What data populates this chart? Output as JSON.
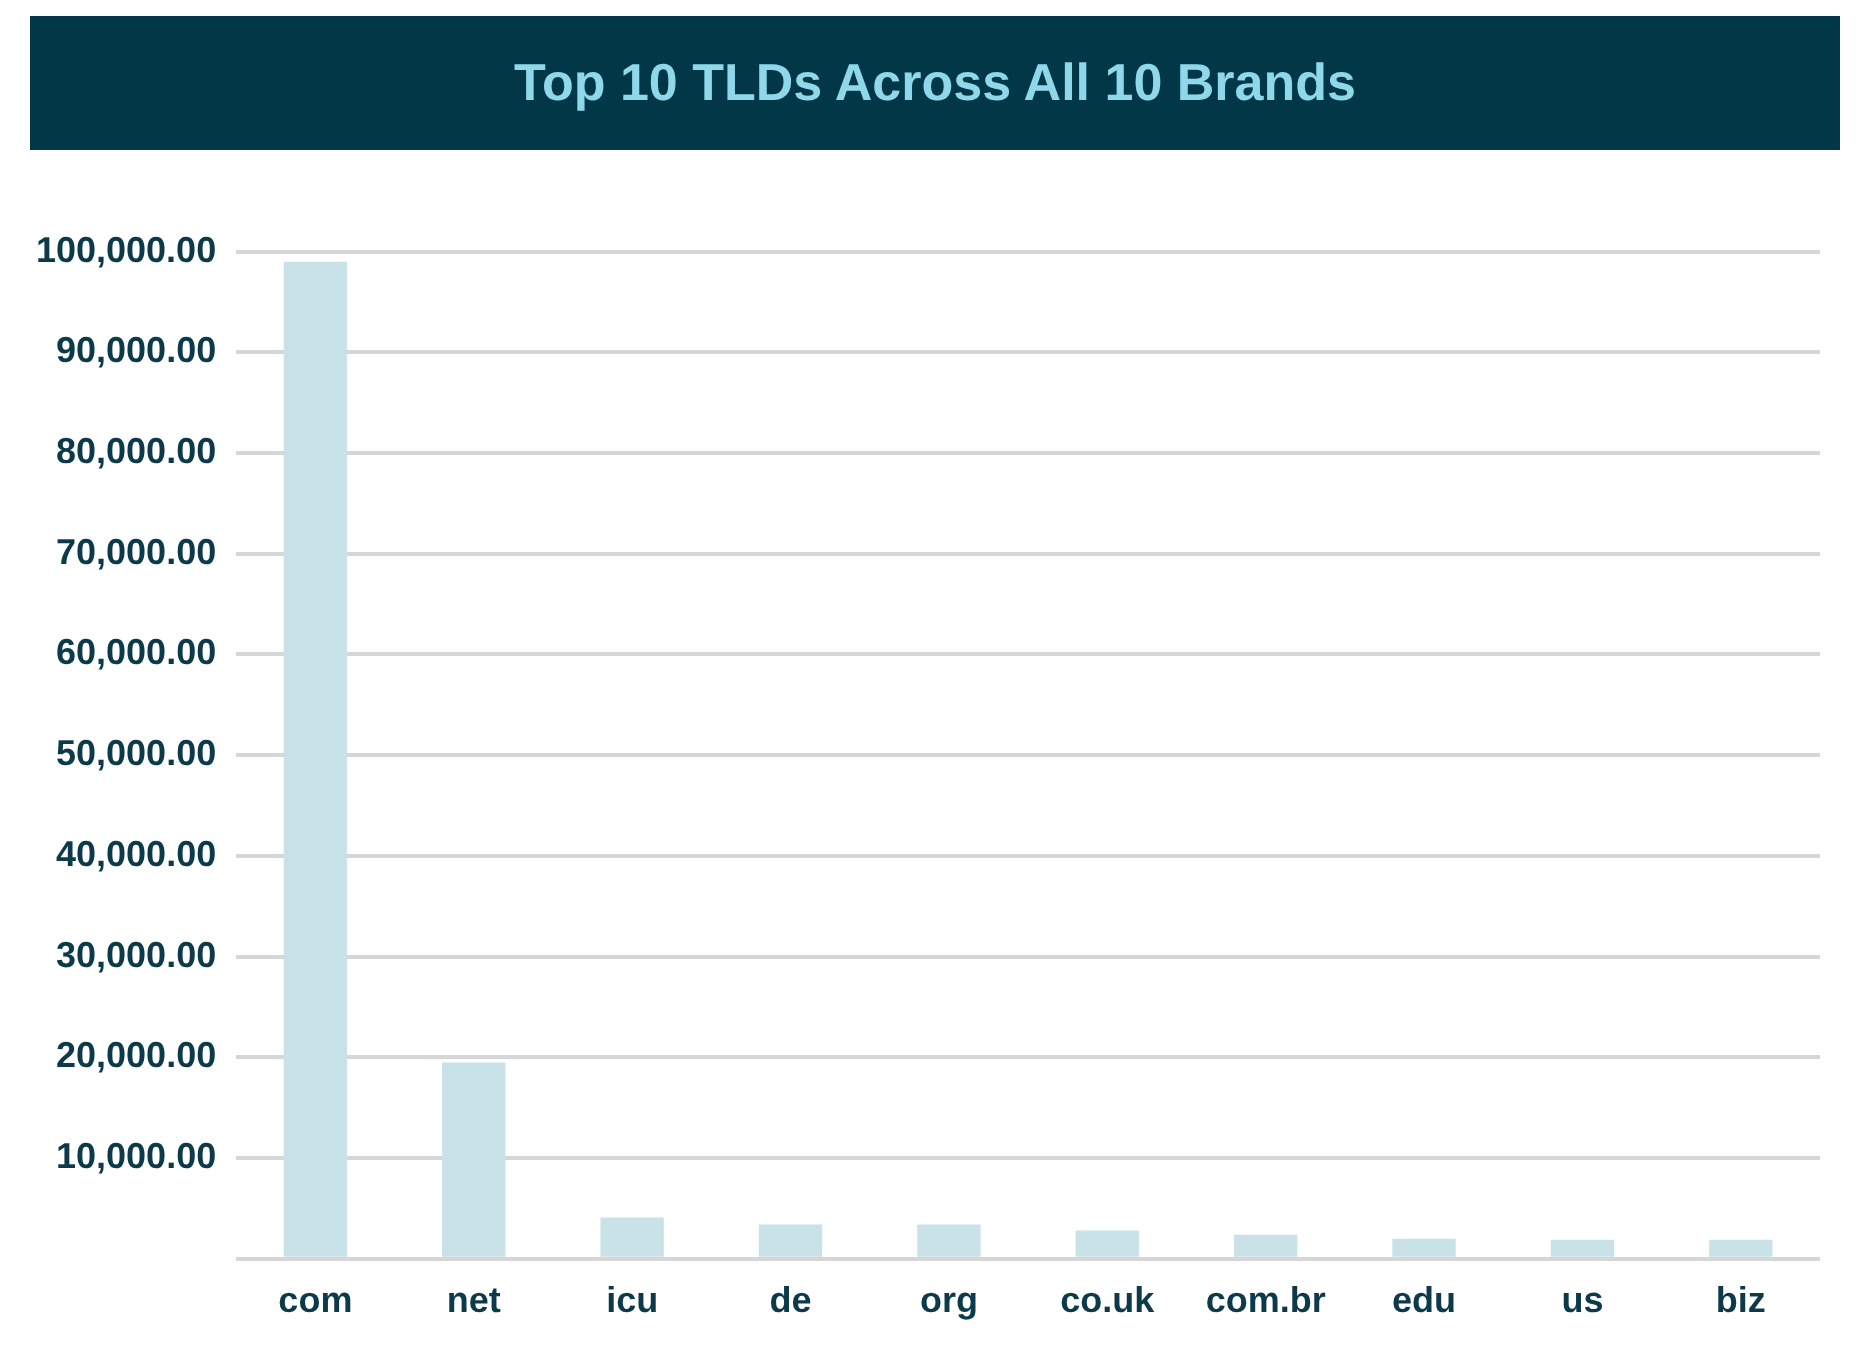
{
  "chart_data": {
    "type": "bar",
    "title": "Top 10 TLDs Across All 10 Brands",
    "categories": [
      "com",
      "net",
      "icu",
      "de",
      "org",
      "co.uk",
      "com.br",
      "edu",
      "us",
      "biz"
    ],
    "values": [
      99000,
      19500,
      4100,
      3400,
      3400,
      2800,
      2400,
      2000,
      1900,
      1900
    ],
    "color": "#c8e2e8",
    "ylim": [
      0,
      100000
    ],
    "yticks": [
      {
        "value": 0,
        "label": null
      },
      {
        "value": 10000,
        "label": "10,000.00"
      },
      {
        "value": 20000,
        "label": "20,000.00"
      },
      {
        "value": 30000,
        "label": "30,000.00"
      },
      {
        "value": 40000,
        "label": "40,000.00"
      },
      {
        "value": 50000,
        "label": "50,000.00"
      },
      {
        "value": 60000,
        "label": "60,000.00"
      },
      {
        "value": 70000,
        "label": "70,000.00"
      },
      {
        "value": 80000,
        "label": "80,000.00"
      },
      {
        "value": 90000,
        "label": "90,000.00"
      },
      {
        "value": 100000,
        "label": "100,000.00"
      }
    ],
    "grid": "y",
    "legend": false
  }
}
